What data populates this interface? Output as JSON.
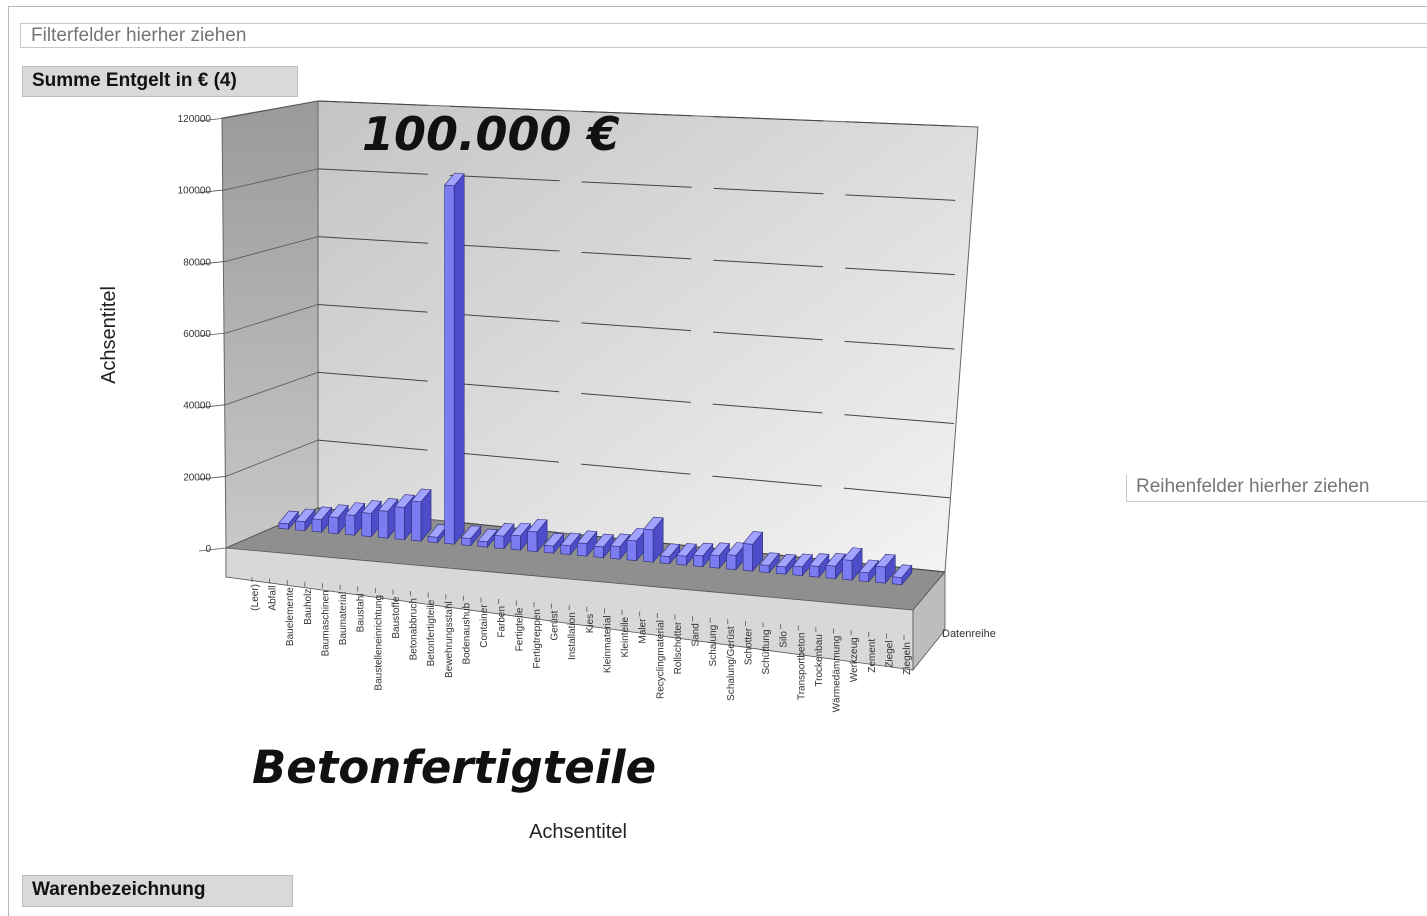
{
  "filter_area": {
    "placeholder": "Filterfelder hierher ziehen"
  },
  "data_field": {
    "label": "Summe Entgelt in € (4)"
  },
  "row_field": {
    "label": "Warenbezeichnung"
  },
  "series_area": {
    "placeholder": "Reihenfelder hierher ziehen"
  },
  "annotations": {
    "value_label": "100.000 €",
    "category_label": "Betonfertigteile"
  },
  "chart_data": {
    "type": "bar",
    "style": "3d-column",
    "xlabel": "Achsentitel",
    "ylabel": "Achsentitel",
    "ylim": [
      0,
      120000
    ],
    "yticks": [
      "0",
      "20000",
      "40000",
      "60000",
      "80000",
      "100000",
      "120000"
    ],
    "grid": true,
    "legend": "none",
    "depth_axis_label": "Datenreihe",
    "bar_color": "#7b7bf2",
    "categories": [
      "(Leer)",
      "Abfall",
      "Bauelemente",
      "Bauholz",
      "Baumaschinen",
      "Baumaterial",
      "Baustahl",
      "Baustelleneinrichtung",
      "Baustoffe",
      "Betonabbruch",
      "Betonfertigteile",
      "Bewehrungsstahl",
      "Bodenaushub",
      "Container",
      "Farben",
      "Fertigteile",
      "Fertigtreppen",
      "Gerüst",
      "Installation",
      "Kies",
      "Kleinmaterial",
      "Kleinteile",
      "Maler",
      "Recyclingmaterial",
      "Rollschotter",
      "Sand",
      "Schalung",
      "Schalung/Gerüst",
      "Schotter",
      "Schüttung",
      "Silo",
      "Transportbeton",
      "Trockenbau",
      "Wärmedämmung",
      "Werkzeug",
      "Zement",
      "Ziegel",
      "Ziegeln"
    ],
    "values": [
      1500,
      2500,
      3500,
      4500,
      5500,
      6500,
      7500,
      9000,
      11000,
      1500,
      100000,
      2000,
      1500,
      3500,
      4000,
      5500,
      2000,
      2500,
      3500,
      3000,
      3500,
      5500,
      9000,
      2000,
      2500,
      3000,
      3500,
      4000,
      7500,
      2000,
      2000,
      2500,
      3000,
      3500,
      5500,
      2500,
      4500,
      2000
    ]
  }
}
